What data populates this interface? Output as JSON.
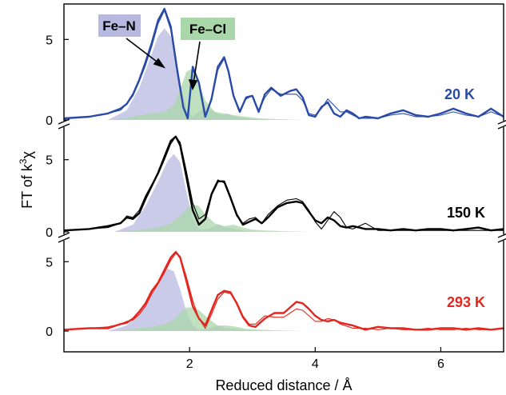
{
  "chart_data": {
    "type": "line",
    "xlabel": "Reduced distance / Å",
    "ylabel_main": "FT of k",
    "ylabel_sup": "3",
    "ylabel_tail": "χ",
    "xlim": [
      0,
      7
    ],
    "x_ticks": [
      2,
      4,
      6
    ],
    "x_tick_labels": [
      "2",
      "4",
      "6"
    ],
    "legend": [
      {
        "name": "Fe–N",
        "color": "#b8b9e0"
      },
      {
        "name": "Fe–Cl",
        "color": "#a9d7a9"
      }
    ],
    "panels": [
      {
        "label": "20 K",
        "color": "#2a4aa8",
        "ylim": [
          0,
          7.2
        ],
        "y_ticks": [
          0,
          5
        ],
        "y_tick_labels": [
          "0",
          "5"
        ],
        "series": [
          {
            "role": "experiment",
            "x": [
              0.0,
              0.4,
              0.7,
              0.9,
              1.0,
              1.1,
              1.2,
              1.3,
              1.4,
              1.5,
              1.6,
              1.7,
              1.8,
              1.9,
              1.97,
              2.05,
              2.15,
              2.25,
              2.35,
              2.45,
              2.55,
              2.62,
              2.7,
              2.8,
              2.9,
              3.0,
              3.1,
              3.2,
              3.3,
              3.45,
              3.6,
              3.7,
              3.8,
              3.9,
              4.0,
              4.1,
              4.2,
              4.3,
              4.4,
              4.5,
              4.6,
              4.7,
              4.8,
              5.0,
              5.2,
              5.4,
              5.6,
              5.8,
              6.0,
              6.2,
              6.4,
              6.6,
              6.8,
              7.0
            ],
            "y": [
              0.1,
              0.2,
              0.4,
              0.7,
              1.0,
              1.6,
              2.5,
              3.6,
              4.8,
              6.2,
              6.9,
              5.8,
              3.2,
              0.8,
              0.1,
              3.3,
              2.3,
              0.2,
              1.3,
              3.3,
              3.9,
              3.0,
              1.5,
              0.5,
              1.4,
              1.5,
              0.5,
              1.6,
              2.0,
              1.5,
              1.8,
              1.9,
              1.4,
              0.3,
              0.2,
              0.8,
              1.1,
              0.4,
              0.2,
              0.6,
              0.4,
              0.1,
              0.2,
              0.1,
              0.4,
              0.6,
              0.3,
              0.2,
              0.4,
              0.7,
              0.4,
              0.2,
              0.7,
              0.2
            ]
          },
          {
            "role": "fit",
            "x": [
              0.0,
              0.4,
              0.7,
              0.9,
              1.0,
              1.1,
              1.2,
              1.3,
              1.4,
              1.5,
              1.6,
              1.7,
              1.8,
              1.9,
              1.97,
              2.05,
              2.15,
              2.25,
              2.35,
              2.45,
              2.55,
              2.62,
              2.7,
              2.8,
              2.9,
              3.0,
              3.1,
              3.2,
              3.3,
              3.45,
              3.6,
              3.7,
              3.8,
              3.9,
              4.0,
              4.1,
              4.2,
              4.3,
              4.4,
              4.5,
              4.6,
              4.7,
              4.8,
              5.0,
              5.2,
              5.4,
              5.6,
              5.8,
              6.0,
              6.2,
              6.4,
              6.6,
              6.8,
              7.0
            ],
            "y": [
              0.1,
              0.2,
              0.4,
              0.6,
              1.0,
              1.5,
              2.4,
              3.4,
              4.6,
              6.0,
              6.8,
              5.6,
              3.0,
              0.8,
              0.2,
              3.1,
              2.4,
              0.3,
              1.2,
              3.1,
              3.8,
              3.0,
              1.5,
              0.6,
              1.3,
              1.5,
              0.6,
              1.4,
              1.9,
              1.6,
              1.6,
              1.6,
              1.2,
              0.4,
              0.3,
              0.7,
              1.3,
              0.9,
              0.5,
              0.5,
              0.3,
              0.1,
              0.1,
              0.1,
              0.3,
              0.4,
              0.2,
              0.2,
              0.3,
              0.5,
              0.3,
              0.2,
              0.5,
              0.2
            ]
          },
          {
            "role": "fe-n-component",
            "x": [
              0.7,
              1.0,
              1.2,
              1.35,
              1.5,
              1.6,
              1.7,
              1.78,
              1.85,
              1.95,
              2.05,
              2.15,
              2.25,
              2.35,
              2.5,
              2.6,
              2.75,
              2.9,
              3.1,
              3.4
            ],
            "y": [
              0.0,
              0.6,
              2.0,
              3.6,
              5.2,
              5.7,
              5.2,
              3.9,
              2.2,
              0.8,
              0.2,
              0.5,
              0.8,
              0.6,
              0.3,
              0.4,
              0.2,
              0.1,
              0.05,
              0.0
            ]
          },
          {
            "role": "fe-cl-component",
            "x": [
              0.7,
              1.0,
              1.2,
              1.4,
              1.6,
              1.75,
              1.85,
              1.95,
              2.05,
              2.15,
              2.25,
              2.4,
              2.55,
              2.7,
              2.9,
              3.1,
              3.4,
              3.8
            ],
            "y": [
              0.0,
              0.1,
              0.3,
              0.4,
              0.5,
              0.9,
              1.9,
              3.0,
              3.2,
              2.3,
              1.2,
              0.5,
              0.4,
              0.3,
              0.2,
              0.1,
              0.05,
              0.0
            ]
          }
        ]
      },
      {
        "label": "150 K",
        "color": "#000000",
        "ylim": [
          0,
          7.2
        ],
        "y_ticks": [
          0,
          5
        ],
        "y_tick_labels": [
          "0",
          "5"
        ],
        "series": [
          {
            "role": "experiment",
            "x": [
              0.0,
              0.4,
              0.7,
              0.9,
              1.0,
              1.1,
              1.2,
              1.3,
              1.4,
              1.5,
              1.6,
              1.7,
              1.78,
              1.85,
              1.95,
              2.05,
              2.15,
              2.25,
              2.35,
              2.45,
              2.55,
              2.65,
              2.75,
              2.85,
              2.95,
              3.05,
              3.15,
              3.25,
              3.4,
              3.55,
              3.7,
              3.8,
              3.9,
              4.0,
              4.1,
              4.2,
              4.3,
              4.4,
              4.5,
              4.6,
              4.7,
              4.8,
              5.0,
              5.2,
              5.4,
              5.6,
              5.8,
              6.0,
              6.2,
              6.4,
              6.6,
              6.8,
              7.0
            ],
            "y": [
              0.1,
              0.2,
              0.4,
              0.6,
              1.0,
              0.9,
              1.3,
              2.3,
              3.2,
              4.1,
              5.2,
              6.3,
              6.6,
              6.0,
              3.8,
              1.5,
              0.5,
              0.9,
              2.6,
              3.5,
              3.5,
              2.4,
              1.2,
              0.5,
              0.7,
              0.9,
              0.6,
              1.0,
              1.7,
              2.0,
              2.1,
              2.0,
              1.4,
              0.8,
              0.6,
              1.0,
              0.8,
              0.4,
              0.3,
              0.4,
              0.3,
              0.2,
              0.2,
              0.1,
              0.2,
              0.1,
              0.2,
              0.2,
              0.1,
              0.2,
              0.3,
              0.1,
              0.2
            ]
          },
          {
            "role": "fit",
            "x": [
              0.0,
              0.4,
              0.7,
              0.9,
              1.0,
              1.1,
              1.2,
              1.3,
              1.4,
              1.5,
              1.6,
              1.7,
              1.78,
              1.85,
              1.95,
              2.05,
              2.15,
              2.25,
              2.35,
              2.45,
              2.55,
              2.65,
              2.75,
              2.85,
              2.95,
              3.05,
              3.15,
              3.25,
              3.4,
              3.55,
              3.7,
              3.8,
              3.9,
              4.0,
              4.1,
              4.2,
              4.3,
              4.4,
              4.5,
              4.6,
              4.7,
              4.8,
              5.0,
              5.2,
              5.4,
              5.6,
              5.8,
              6.0,
              6.2,
              6.4,
              6.6,
              6.8,
              7.0
            ],
            "y": [
              0.1,
              0.2,
              0.3,
              0.6,
              1.1,
              1.0,
              1.5,
              2.5,
              3.3,
              4.0,
              5.0,
              6.1,
              6.6,
              6.2,
              4.2,
              2.0,
              0.9,
              1.2,
              2.7,
              3.6,
              3.4,
              2.3,
              1.1,
              0.6,
              0.9,
              1.0,
              0.6,
              1.2,
              1.8,
              2.2,
              2.3,
              2.1,
              1.5,
              0.7,
              0.2,
              0.8,
              1.4,
              1.0,
              0.3,
              0.2,
              0.4,
              0.6,
              0.1,
              0.1,
              0.1,
              0.1,
              0.1,
              0.1,
              0.1,
              0.1,
              0.1,
              0.1,
              0.1
            ]
          },
          {
            "role": "fe-n-component",
            "x": [
              0.8,
              1.1,
              1.3,
              1.5,
              1.65,
              1.75,
              1.85,
              1.95,
              2.05,
              2.15,
              2.3,
              2.45,
              2.6,
              2.75,
              2.9,
              3.1,
              3.4
            ],
            "y": [
              0.0,
              0.5,
              1.8,
              3.5,
              4.9,
              5.4,
              4.8,
              2.8,
              0.9,
              0.2,
              0.2,
              0.5,
              0.3,
              0.15,
              0.05,
              0.0,
              0.0
            ]
          },
          {
            "role": "fe-cl-component",
            "x": [
              0.8,
              1.1,
              1.3,
              1.5,
              1.7,
              1.85,
              1.95,
              2.05,
              2.15,
              2.25,
              2.4,
              2.55,
              2.7,
              2.85,
              3.0,
              3.2,
              3.5,
              3.9
            ],
            "y": [
              0.0,
              0.1,
              0.2,
              0.3,
              0.6,
              1.1,
              1.6,
              1.9,
              1.8,
              1.2,
              0.6,
              0.4,
              0.5,
              0.3,
              0.15,
              0.1,
              0.05,
              0.0
            ]
          }
        ]
      },
      {
        "label": "293 K",
        "color": "#e3261f",
        "ylim": [
          0,
          6.4
        ],
        "y_ticks": [
          0,
          5
        ],
        "y_tick_labels": [
          "0",
          "5"
        ],
        "series": [
          {
            "role": "experiment",
            "x": [
              0.0,
              0.4,
              0.7,
              0.9,
              1.0,
              1.1,
              1.2,
              1.3,
              1.4,
              1.5,
              1.6,
              1.7,
              1.78,
              1.85,
              1.95,
              2.05,
              2.15,
              2.25,
              2.35,
              2.45,
              2.55,
              2.65,
              2.75,
              2.85,
              2.95,
              3.05,
              3.2,
              3.35,
              3.5,
              3.6,
              3.7,
              3.8,
              3.9,
              4.0,
              4.1,
              4.2,
              4.3,
              4.4,
              4.6,
              4.8,
              5.0,
              5.2,
              5.4,
              5.6,
              5.8,
              6.0,
              6.2,
              6.4,
              6.6,
              6.8,
              7.0
            ],
            "y": [
              0.1,
              0.2,
              0.2,
              0.5,
              0.6,
              0.9,
              1.4,
              2.0,
              2.9,
              3.5,
              4.4,
              5.3,
              5.7,
              5.3,
              3.6,
              1.8,
              0.9,
              0.4,
              1.5,
              2.6,
              2.9,
              2.8,
              2.0,
              1.0,
              0.4,
              0.3,
              0.9,
              1.3,
              1.3,
              1.7,
              2.1,
              2.0,
              1.6,
              1.1,
              0.8,
              0.7,
              0.8,
              0.6,
              0.4,
              0.1,
              0.3,
              0.2,
              0.2,
              0.1,
              0.1,
              0.2,
              0.2,
              0.1,
              0.2,
              0.1,
              0.2
            ]
          },
          {
            "role": "fit",
            "x": [
              0.0,
              0.4,
              0.7,
              0.9,
              1.0,
              1.1,
              1.2,
              1.3,
              1.4,
              1.5,
              1.6,
              1.7,
              1.78,
              1.85,
              1.95,
              2.05,
              2.15,
              2.25,
              2.35,
              2.45,
              2.55,
              2.65,
              2.75,
              2.85,
              2.95,
              3.05,
              3.2,
              3.35,
              3.5,
              3.6,
              3.7,
              3.8,
              3.9,
              4.0,
              4.1,
              4.2,
              4.3,
              4.4,
              4.6,
              4.8,
              5.0,
              5.2,
              5.4,
              5.6,
              5.8,
              6.0,
              6.2,
              6.4,
              6.6,
              6.8,
              7.0
            ],
            "y": [
              0.1,
              0.2,
              0.3,
              0.5,
              0.7,
              0.8,
              1.2,
              1.8,
              2.7,
              3.4,
              4.2,
              5.1,
              5.6,
              5.4,
              3.9,
              2.2,
              0.9,
              0.2,
              1.2,
              2.3,
              2.8,
              2.7,
              2.1,
              1.1,
              0.5,
              0.5,
              1.1,
              1.0,
              1.0,
              1.3,
              1.6,
              1.5,
              1.1,
              0.7,
              0.7,
              0.9,
              0.8,
              0.5,
              0.2,
              0.2,
              0.1,
              0.2,
              0.1,
              0.1,
              0.2,
              0.1,
              0.1,
              0.2,
              0.1,
              0.1,
              0.2
            ]
          },
          {
            "role": "fe-n-component",
            "x": [
              0.7,
              1.0,
              1.2,
              1.4,
              1.55,
              1.65,
              1.75,
              1.85,
              1.95,
              2.05,
              2.15,
              2.3,
              2.45,
              2.6,
              2.8,
              3.0,
              3.3
            ],
            "y": [
              0.0,
              0.4,
              1.3,
              2.7,
              3.9,
              4.5,
              4.3,
              3.0,
              1.4,
              0.4,
              0.1,
              0.2,
              0.4,
              0.2,
              0.1,
              0.05,
              0.0
            ]
          },
          {
            "role": "fe-cl-component",
            "x": [
              0.7,
              1.0,
              1.2,
              1.4,
              1.6,
              1.75,
              1.85,
              1.95,
              2.05,
              2.15,
              2.3,
              2.45,
              2.6,
              2.75,
              2.9,
              3.1,
              3.4,
              3.8
            ],
            "y": [
              0.0,
              0.1,
              0.2,
              0.3,
              0.5,
              0.8,
              1.3,
              1.7,
              1.7,
              1.5,
              0.9,
              0.4,
              0.4,
              0.3,
              0.15,
              0.1,
              0.05,
              0.0
            ]
          }
        ]
      }
    ]
  }
}
